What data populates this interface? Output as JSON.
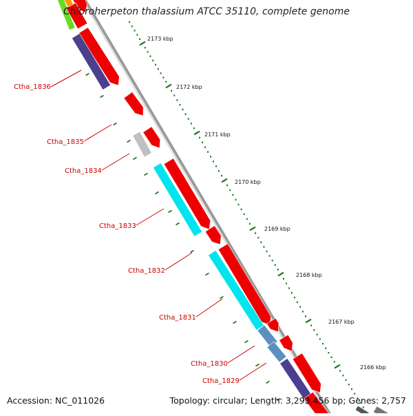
{
  "map": {
    "title": "Chloroherpeton thalassium ATCC 35110, complete genome",
    "accession": "Accession: NC_011026",
    "topology": "Topology: circular; Length: 3,293,456 bp; Genes: 2,757"
  },
  "ticks": [
    {
      "label": "2173 kbp"
    },
    {
      "label": "2172 kbp"
    },
    {
      "label": "2171 kbp"
    },
    {
      "label": "2170 kbp"
    },
    {
      "label": "2169 kbp"
    },
    {
      "label": "2168 kbp"
    },
    {
      "label": "2167 kbp"
    },
    {
      "label": "2166 kbp"
    }
  ],
  "gene_labels": [
    {
      "label": "Ctha_1836"
    },
    {
      "label": "Ctha_1835"
    },
    {
      "label": "Ctha_1834"
    },
    {
      "label": "Ctha_1833"
    },
    {
      "label": "Ctha_1832"
    },
    {
      "label": "Ctha_1831"
    },
    {
      "label": "Ctha_1830"
    },
    {
      "label": "Ctha_1829"
    }
  ],
  "colors": {
    "forward_strand": "#ee0000",
    "cyan_feature": "#00e5ee",
    "purple_feature": "#4b3f8f",
    "steel_feature": "#5b8fbf",
    "gray_feature": "#c0c0c0",
    "green_feature": "#66dd22",
    "orange_feature": "#ff9900",
    "backbone": "#888888",
    "tick": "#227722",
    "label": "#cc0000"
  }
}
